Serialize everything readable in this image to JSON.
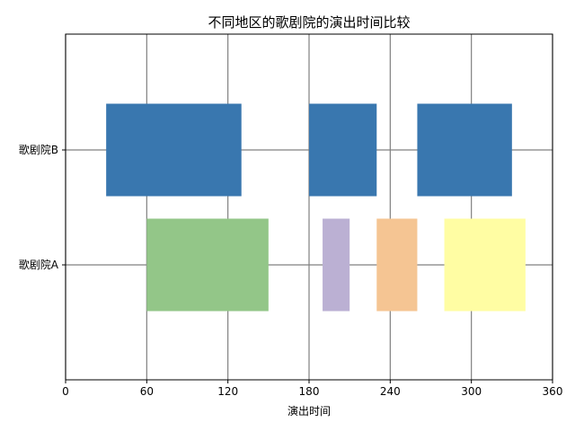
{
  "chart_data": {
    "type": "bar",
    "orientation": "horizontal-broken-bars",
    "title": "不同地区的歌剧院的演出时间比较",
    "xlabel": "演出时间",
    "ylabel": "",
    "xlim": [
      0,
      360
    ],
    "xticks": [
      0,
      60,
      120,
      180,
      240,
      300,
      360
    ],
    "grid": true,
    "categories": [
      "歌剧院A",
      "歌剧院B"
    ],
    "series": [
      {
        "category": "歌剧院A",
        "segments": [
          {
            "start": 60,
            "duration": 90,
            "color": "#93c688"
          },
          {
            "start": 190,
            "duration": 20,
            "color": "#bbb0d3"
          },
          {
            "start": 230,
            "duration": 30,
            "color": "#f5c593"
          },
          {
            "start": 280,
            "duration": 60,
            "color": "#fffda3"
          }
        ]
      },
      {
        "category": "歌剧院B",
        "segments": [
          {
            "start": 30,
            "duration": 100,
            "color": "#3977af"
          },
          {
            "start": 180,
            "duration": 50,
            "color": "#3977af"
          },
          {
            "start": 260,
            "duration": 70,
            "color": "#3977af"
          }
        ]
      }
    ]
  }
}
